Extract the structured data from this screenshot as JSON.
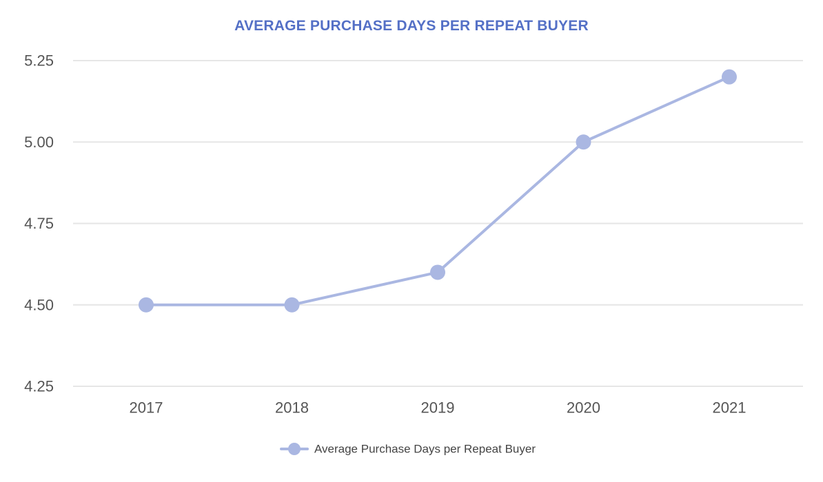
{
  "chart_data": {
    "type": "line",
    "title": "AVERAGE PURCHASE DAYS PER REPEAT BUYER",
    "categories": [
      "2017",
      "2018",
      "2019",
      "2020",
      "2021"
    ],
    "series": [
      {
        "name": "Average Purchase Days per Repeat Buyer",
        "values": [
          4.5,
          4.5,
          4.6,
          5.0,
          5.2
        ]
      }
    ],
    "ylim": [
      4.25,
      5.25
    ],
    "yticks": [
      4.25,
      4.5,
      4.75,
      5.0,
      5.25
    ],
    "ytick_labels": [
      "4.25",
      "4.50",
      "4.75",
      "5.00",
      "5.25"
    ],
    "xlabel": "",
    "ylabel": "",
    "grid": true,
    "legend_position": "bottom-center",
    "colors": {
      "title": "#5470c6",
      "series": "#aab7e2",
      "grid": "#e6e6e6",
      "tick_text": "#555555"
    }
  }
}
